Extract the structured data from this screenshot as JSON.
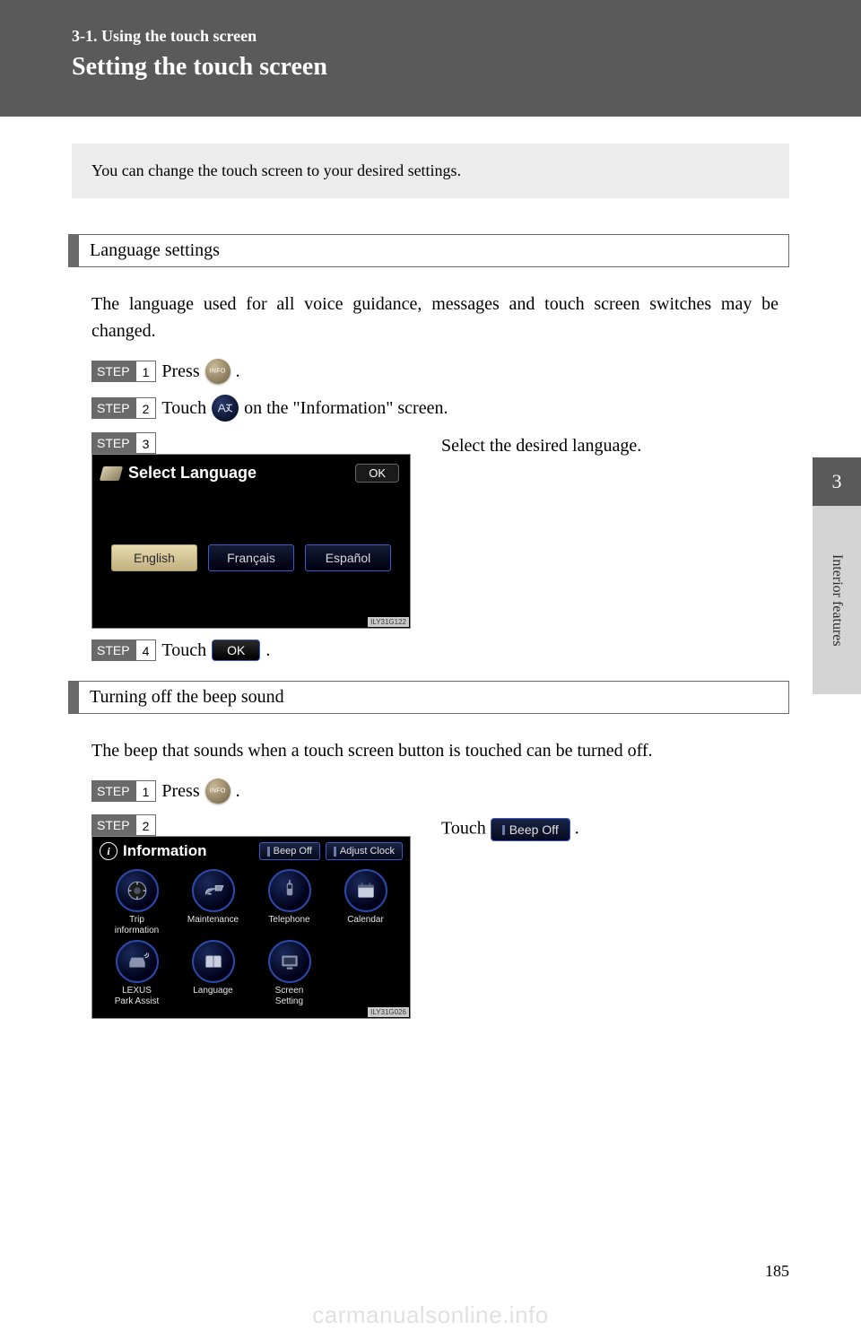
{
  "header": {
    "section": "3-1. Using the touch screen",
    "title": "Setting the touch screen"
  },
  "intro": "You can change the touch screen to your desired settings.",
  "lang_section": {
    "heading": "Language settings",
    "para": "The language used for all voice guidance, messages and touch screen switches may be changed.",
    "step1_label": "STEP",
    "step1_num": "1",
    "step1_text_a": "Press ",
    "step1_text_b": ".",
    "step2_label": "STEP",
    "step2_num": "2",
    "step2_text_a": "Touch ",
    "step2_text_b": " on the \"Information\" screen.",
    "step3_label": "STEP",
    "step3_num": "3",
    "step3_text": "Select the desired language.",
    "step4_label": "STEP",
    "step4_num": "4",
    "step4_text_a": "Touch ",
    "step4_text_b": ".",
    "ok_text": "OK",
    "screen": {
      "title": "Select Language",
      "ok": "OK",
      "opts": [
        "English",
        "Français",
        "Español"
      ],
      "tag": "ILY31G122"
    }
  },
  "beep_section": {
    "heading": "Turning off the beep sound",
    "para": "The beep that sounds when a touch screen button is touched can be turned off.",
    "step1_label": "STEP",
    "step1_num": "1",
    "step1_text_a": "Press ",
    "step1_text_b": ".",
    "step2_label": "STEP",
    "step2_num": "2",
    "step2_text_a": "Touch ",
    "step2_text_b": ".",
    "beep_btn": "Beep Off",
    "screen": {
      "title": "Information",
      "top_btns": [
        "Beep Off",
        "Adjust Clock"
      ],
      "items": [
        {
          "label": "Trip\ninformation"
        },
        {
          "label": "Maintenance"
        },
        {
          "label": "Telephone"
        },
        {
          "label": "Calendar"
        },
        {
          "label": "LEXUS\nPark Assist"
        },
        {
          "label": "Language"
        },
        {
          "label": "Screen\nSetting"
        }
      ],
      "tag": "ILY31G026"
    }
  },
  "side": {
    "num": "3",
    "text": "Interior features"
  },
  "page_num": "185",
  "watermark": "carmanualsonline.info"
}
